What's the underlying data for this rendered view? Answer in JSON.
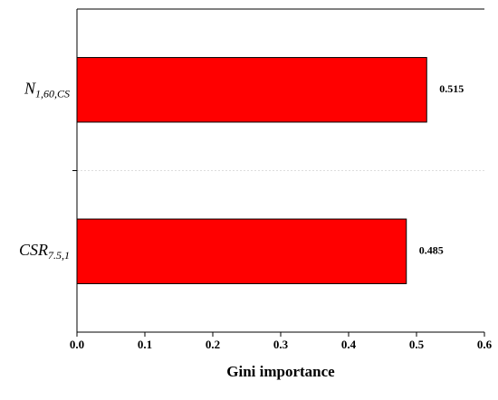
{
  "chart_data": {
    "type": "barh",
    "x_label": "Gini importance",
    "categories": [
      {
        "base": "N",
        "sub": "1,60,CS"
      },
      {
        "base": "CSR",
        "sub": "7.5,1"
      }
    ],
    "values": [
      0.515,
      0.485
    ],
    "color": "#ff0000",
    "xlim": [
      0,
      0.6
    ],
    "xticks": [
      {
        "value": 0,
        "label": "0.0"
      },
      0.1,
      0.2,
      0.3,
      0.4,
      0.5,
      0.6
    ]
  }
}
